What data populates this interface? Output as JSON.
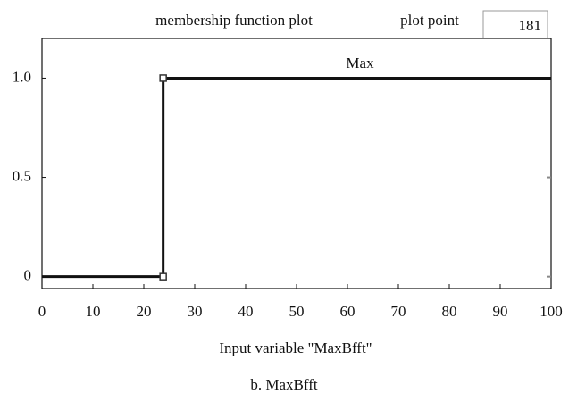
{
  "chart_data": {
    "type": "line",
    "title": "membership function plot",
    "plot_point_label": "plot point",
    "plot_points": 181,
    "x_label": "Input variable \"MaxBfft\"",
    "caption": "b. MaxBfft",
    "x": [
      0,
      23.8,
      23.8,
      100
    ],
    "series": [
      {
        "name": "Max",
        "color": "#111111",
        "values": [
          0,
          0,
          1,
          1
        ]
      }
    ],
    "markers": [
      1,
      2
    ],
    "xlim": [
      0,
      100
    ],
    "xticks": [
      0,
      10,
      20,
      30,
      40,
      50,
      60,
      70,
      80,
      90,
      100
    ],
    "ylim": [
      -0.06,
      1.2
    ],
    "yticks": [
      0,
      {
        "value": 0.5,
        "label": "0.5"
      },
      {
        "value": 1,
        "label": "1.0"
      }
    ],
    "grid": false
  }
}
